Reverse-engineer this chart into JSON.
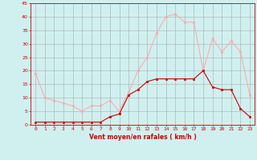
{
  "hours": [
    0,
    1,
    2,
    3,
    4,
    5,
    6,
    7,
    8,
    9,
    10,
    11,
    12,
    13,
    14,
    15,
    16,
    17,
    18,
    19,
    20,
    21,
    22,
    23
  ],
  "wind_avg": [
    1,
    1,
    1,
    1,
    1,
    1,
    1,
    1,
    3,
    4,
    11,
    13,
    16,
    17,
    17,
    17,
    17,
    17,
    20,
    14,
    13,
    13,
    6,
    3
  ],
  "wind_gust": [
    19,
    10,
    9,
    8,
    7,
    5,
    7,
    7,
    9,
    5,
    12,
    20,
    25,
    34,
    40,
    41,
    38,
    38,
    20,
    32,
    27,
    31,
    27,
    11
  ],
  "avg_color": "#cc0000",
  "gust_color": "#ffaaaa",
  "bg_color": "#d0f0f0",
  "grid_color": "#aaaaaa",
  "xlabel": "Vent moyen/en rafales ( km/h )",
  "xlabel_color": "#cc0000",
  "tick_color": "#cc0000",
  "ylim": [
    0,
    45
  ],
  "yticks": [
    0,
    5,
    10,
    15,
    20,
    25,
    30,
    35,
    40,
    45
  ],
  "marker_avg": "s",
  "marker_gust": "D",
  "linewidth": 0.8,
  "markersize": 1.8
}
